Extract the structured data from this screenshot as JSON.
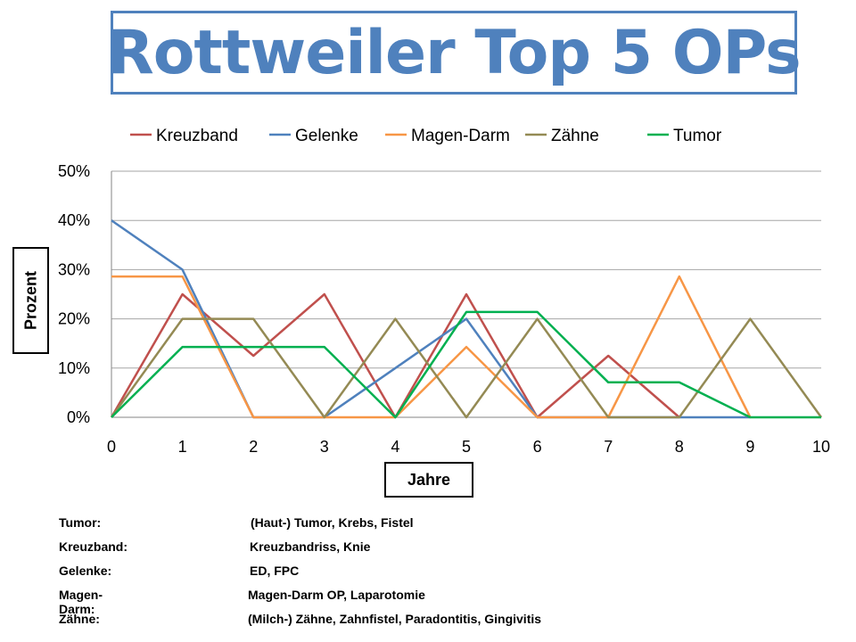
{
  "title": "Rottweiler Top 5 OPs",
  "chart_data": {
    "type": "line",
    "xlabel": "Jahre",
    "ylabel": "Prozent",
    "x": [
      0,
      1,
      2,
      3,
      4,
      5,
      6,
      7,
      8,
      9,
      10
    ],
    "ylim": [
      0,
      0.5
    ],
    "yticks": [
      "0%",
      "10%",
      "20%",
      "30%",
      "40%",
      "50%"
    ],
    "xticks": [
      "0",
      "1",
      "2",
      "3",
      "4",
      "5",
      "6",
      "7",
      "8",
      "9",
      "10"
    ],
    "grid": "horizontal",
    "legend_position": "top",
    "series": [
      {
        "name": "Kreuzband",
        "color": "#c0504d",
        "values": [
          0,
          0.25,
          0.125,
          0.25,
          0,
          0.25,
          0,
          0.125,
          0,
          null,
          null
        ]
      },
      {
        "name": "Gelenke",
        "color": "#4f81bd",
        "values": [
          0.4,
          0.3,
          0,
          0,
          0.1,
          0.2,
          0,
          0,
          0,
          0,
          null
        ]
      },
      {
        "name": "Magen-Darm",
        "color": "#f79646",
        "values": [
          0.286,
          0.286,
          0,
          0,
          0,
          0.143,
          0,
          0,
          0.286,
          0,
          null
        ]
      },
      {
        "name": "Zähne",
        "color": "#948a54",
        "values": [
          0,
          0.2,
          0.2,
          0,
          0.2,
          0,
          0.2,
          0,
          0,
          0.2,
          0
        ]
      },
      {
        "name": "Tumor",
        "color": "#00b050",
        "values": [
          0,
          0.143,
          0.143,
          0.143,
          0,
          0.214,
          0.214,
          0.071,
          0.071,
          0,
          0
        ]
      }
    ]
  },
  "notes": [
    {
      "key": "Tumor:",
      "value": "(Haut-) Tumor, Krebs, Fistel"
    },
    {
      "key": "Kreuzband:",
      "value": "Kreuzbandriss, Knie"
    },
    {
      "key": "Gelenke:",
      "value": "ED, FPC"
    },
    {
      "key": "Magen-Darm:",
      "value": "Magen-Darm OP, Laparotomie"
    },
    {
      "key": "Zähne:",
      "value": "(Milch-) Zähne, Zahnfistel, Paradontitis, Gingivitis"
    }
  ]
}
